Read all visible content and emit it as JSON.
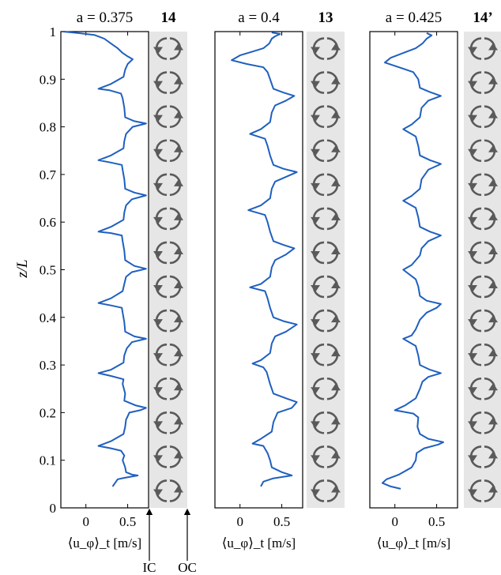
{
  "chart_data": [
    {
      "type": "line",
      "title": "a = 0.375",
      "roll_count": "14",
      "xlabel": "⟨u_φ⟩_t [m/s]",
      "ylabel": "z/L",
      "xlim": [
        -0.3,
        0.75
      ],
      "ylim": [
        0,
        1
      ],
      "xticks": [
        0,
        0.5
      ],
      "yticks": [
        0,
        0.1,
        0.2,
        0.3,
        0.4,
        0.5,
        0.6,
        0.7,
        0.8,
        0.9,
        1
      ],
      "line_color": "#1f5fbf",
      "series": [
        {
          "points": [
            [
              0.32,
              0.045
            ],
            [
              0.36,
              0.055
            ],
            [
              0.38,
              0.06
            ],
            [
              0.46,
              0.063
            ],
            [
              0.62,
              0.068
            ],
            [
              0.55,
              0.07
            ],
            [
              0.48,
              0.075
            ],
            [
              0.47,
              0.085
            ],
            [
              0.44,
              0.1
            ],
            [
              0.46,
              0.11
            ],
            [
              0.42,
              0.12
            ],
            [
              0.3,
              0.125
            ],
            [
              0.15,
              0.13
            ],
            [
              0.3,
              0.14
            ],
            [
              0.45,
              0.155
            ],
            [
              0.47,
              0.17
            ],
            [
              0.48,
              0.185
            ],
            [
              0.52,
              0.2
            ],
            [
              0.65,
              0.205
            ],
            [
              0.72,
              0.21
            ],
            [
              0.6,
              0.215
            ],
            [
              0.46,
              0.225
            ],
            [
              0.47,
              0.24
            ],
            [
              0.44,
              0.26
            ],
            [
              0.45,
              0.27
            ],
            [
              0.3,
              0.277
            ],
            [
              0.15,
              0.283
            ],
            [
              0.3,
              0.29
            ],
            [
              0.45,
              0.305
            ],
            [
              0.46,
              0.32
            ],
            [
              0.49,
              0.335
            ],
            [
              0.55,
              0.348
            ],
            [
              0.72,
              0.355
            ],
            [
              0.58,
              0.36
            ],
            [
              0.47,
              0.37
            ],
            [
              0.46,
              0.39
            ],
            [
              0.44,
              0.41
            ],
            [
              0.43,
              0.42
            ],
            [
              0.3,
              0.425
            ],
            [
              0.15,
              0.43
            ],
            [
              0.3,
              0.44
            ],
            [
              0.44,
              0.455
            ],
            [
              0.46,
              0.47
            ],
            [
              0.48,
              0.485
            ],
            [
              0.55,
              0.495
            ],
            [
              0.72,
              0.502
            ],
            [
              0.58,
              0.508
            ],
            [
              0.47,
              0.52
            ],
            [
              0.46,
              0.54
            ],
            [
              0.44,
              0.56
            ],
            [
              0.43,
              0.572
            ],
            [
              0.3,
              0.577
            ],
            [
              0.15,
              0.58
            ],
            [
              0.3,
              0.59
            ],
            [
              0.45,
              0.605
            ],
            [
              0.46,
              0.62
            ],
            [
              0.48,
              0.635
            ],
            [
              0.55,
              0.648
            ],
            [
              0.72,
              0.656
            ],
            [
              0.58,
              0.662
            ],
            [
              0.47,
              0.67
            ],
            [
              0.46,
              0.69
            ],
            [
              0.44,
              0.71
            ],
            [
              0.43,
              0.72
            ],
            [
              0.3,
              0.725
            ],
            [
              0.15,
              0.73
            ],
            [
              0.3,
              0.74
            ],
            [
              0.45,
              0.755
            ],
            [
              0.46,
              0.77
            ],
            [
              0.48,
              0.785
            ],
            [
              0.56,
              0.8
            ],
            [
              0.72,
              0.807
            ],
            [
              0.58,
              0.812
            ],
            [
              0.47,
              0.82
            ],
            [
              0.46,
              0.84
            ],
            [
              0.44,
              0.86
            ],
            [
              0.42,
              0.87
            ],
            [
              0.28,
              0.877
            ],
            [
              0.15,
              0.88
            ],
            [
              0.3,
              0.89
            ],
            [
              0.45,
              0.905
            ],
            [
              0.47,
              0.92
            ],
            [
              0.5,
              0.932
            ],
            [
              0.56,
              0.942
            ],
            [
              0.5,
              0.948
            ],
            [
              0.44,
              0.955
            ],
            [
              0.38,
              0.965
            ],
            [
              0.3,
              0.975
            ],
            [
              0.22,
              0.985
            ],
            [
              0.1,
              0.993
            ],
            [
              -0.1,
              0.997
            ],
            [
              -0.27,
              1.0
            ]
          ]
        }
      ]
    },
    {
      "type": "line",
      "title": "a = 0.4",
      "roll_count": "13",
      "xlabel": "⟨u_φ⟩_t [m/s]",
      "ylabel": "",
      "xlim": [
        -0.3,
        0.75
      ],
      "ylim": [
        0,
        1
      ],
      "xticks": [
        0,
        0.5
      ],
      "line_color": "#1f5fbf",
      "series": [
        {
          "points": [
            [
              0.25,
              0.045
            ],
            [
              0.28,
              0.055
            ],
            [
              0.4,
              0.062
            ],
            [
              0.62,
              0.068
            ],
            [
              0.5,
              0.075
            ],
            [
              0.38,
              0.085
            ],
            [
              0.36,
              0.1
            ],
            [
              0.33,
              0.115
            ],
            [
              0.28,
              0.13
            ],
            [
              0.15,
              0.135
            ],
            [
              0.25,
              0.145
            ],
            [
              0.38,
              0.16
            ],
            [
              0.4,
              0.18
            ],
            [
              0.45,
              0.2
            ],
            [
              0.62,
              0.21
            ],
            [
              0.68,
              0.222
            ],
            [
              0.55,
              0.23
            ],
            [
              0.4,
              0.24
            ],
            [
              0.36,
              0.26
            ],
            [
              0.32,
              0.285
            ],
            [
              0.28,
              0.295
            ],
            [
              0.15,
              0.303
            ],
            [
              0.25,
              0.31
            ],
            [
              0.36,
              0.325
            ],
            [
              0.38,
              0.345
            ],
            [
              0.42,
              0.36
            ],
            [
              0.55,
              0.37
            ],
            [
              0.68,
              0.385
            ],
            [
              0.52,
              0.392
            ],
            [
              0.4,
              0.4
            ],
            [
              0.36,
              0.42
            ],
            [
              0.33,
              0.44
            ],
            [
              0.3,
              0.455
            ],
            [
              0.12,
              0.463
            ],
            [
              0.25,
              0.47
            ],
            [
              0.36,
              0.485
            ],
            [
              0.38,
              0.505
            ],
            [
              0.42,
              0.52
            ],
            [
              0.55,
              0.532
            ],
            [
              0.65,
              0.545
            ],
            [
              0.52,
              0.552
            ],
            [
              0.4,
              0.56
            ],
            [
              0.36,
              0.58
            ],
            [
              0.33,
              0.6
            ],
            [
              0.3,
              0.615
            ],
            [
              0.1,
              0.625
            ],
            [
              0.25,
              0.635
            ],
            [
              0.36,
              0.65
            ],
            [
              0.38,
              0.67
            ],
            [
              0.42,
              0.685
            ],
            [
              0.55,
              0.695
            ],
            [
              0.68,
              0.705
            ],
            [
              0.52,
              0.712
            ],
            [
              0.4,
              0.72
            ],
            [
              0.36,
              0.74
            ],
            [
              0.33,
              0.76
            ],
            [
              0.3,
              0.775
            ],
            [
              0.12,
              0.785
            ],
            [
              0.25,
              0.795
            ],
            [
              0.36,
              0.81
            ],
            [
              0.38,
              0.83
            ],
            [
              0.42,
              0.845
            ],
            [
              0.55,
              0.855
            ],
            [
              0.65,
              0.865
            ],
            [
              0.52,
              0.872
            ],
            [
              0.4,
              0.88
            ],
            [
              0.36,
              0.9
            ],
            [
              0.33,
              0.915
            ],
            [
              0.28,
              0.925
            ],
            [
              0.08,
              0.932
            ],
            [
              -0.1,
              0.94
            ],
            [
              0.0,
              0.95
            ],
            [
              0.15,
              0.958
            ],
            [
              0.28,
              0.965
            ],
            [
              0.35,
              0.975
            ],
            [
              0.38,
              0.985
            ],
            [
              0.42,
              0.99
            ],
            [
              0.48,
              0.995
            ],
            [
              0.38,
              0.998
            ]
          ]
        }
      ]
    },
    {
      "type": "line",
      "title": "a = 0.425",
      "roll_count": "14’",
      "xlabel": "⟨u_φ⟩_t [m/s]",
      "ylabel": "",
      "xlim": [
        -0.3,
        0.75
      ],
      "ylim": [
        0,
        1
      ],
      "xticks": [
        0,
        0.5
      ],
      "line_color": "#1f5fbf",
      "series": [
        {
          "points": [
            [
              0.07,
              0.04
            ],
            [
              -0.05,
              0.045
            ],
            [
              -0.15,
              0.052
            ],
            [
              -0.1,
              0.06
            ],
            [
              0.05,
              0.07
            ],
            [
              0.2,
              0.085
            ],
            [
              0.25,
              0.1
            ],
            [
              0.26,
              0.115
            ],
            [
              0.35,
              0.125
            ],
            [
              0.52,
              0.133
            ],
            [
              0.58,
              0.138
            ],
            [
              0.4,
              0.145
            ],
            [
              0.3,
              0.155
            ],
            [
              0.27,
              0.17
            ],
            [
              0.28,
              0.19
            ],
            [
              0.22,
              0.198
            ],
            [
              0.0,
              0.205
            ],
            [
              0.12,
              0.215
            ],
            [
              0.25,
              0.23
            ],
            [
              0.3,
              0.25
            ],
            [
              0.33,
              0.265
            ],
            [
              0.4,
              0.275
            ],
            [
              0.55,
              0.283
            ],
            [
              0.42,
              0.29
            ],
            [
              0.3,
              0.3
            ],
            [
              0.28,
              0.32
            ],
            [
              0.25,
              0.34
            ],
            [
              0.1,
              0.355
            ],
            [
              0.2,
              0.362
            ],
            [
              0.25,
              0.375
            ],
            [
              0.3,
              0.395
            ],
            [
              0.38,
              0.41
            ],
            [
              0.5,
              0.42
            ],
            [
              0.55,
              0.428
            ],
            [
              0.38,
              0.435
            ],
            [
              0.3,
              0.445
            ],
            [
              0.28,
              0.465
            ],
            [
              0.25,
              0.48
            ],
            [
              0.1,
              0.5
            ],
            [
              0.2,
              0.51
            ],
            [
              0.3,
              0.53
            ],
            [
              0.32,
              0.545
            ],
            [
              0.4,
              0.56
            ],
            [
              0.55,
              0.572
            ],
            [
              0.42,
              0.58
            ],
            [
              0.3,
              0.59
            ],
            [
              0.28,
              0.61
            ],
            [
              0.25,
              0.63
            ],
            [
              0.1,
              0.645
            ],
            [
              0.2,
              0.655
            ],
            [
              0.3,
              0.67
            ],
            [
              0.32,
              0.69
            ],
            [
              0.4,
              0.71
            ],
            [
              0.55,
              0.722
            ],
            [
              0.42,
              0.73
            ],
            [
              0.3,
              0.74
            ],
            [
              0.28,
              0.76
            ],
            [
              0.25,
              0.78
            ],
            [
              0.1,
              0.795
            ],
            [
              0.2,
              0.805
            ],
            [
              0.3,
              0.82
            ],
            [
              0.32,
              0.84
            ],
            [
              0.4,
              0.855
            ],
            [
              0.55,
              0.865
            ],
            [
              0.42,
              0.873
            ],
            [
              0.3,
              0.882
            ],
            [
              0.28,
              0.9
            ],
            [
              0.22,
              0.915
            ],
            [
              0.05,
              0.925
            ],
            [
              -0.12,
              0.935
            ],
            [
              -0.05,
              0.945
            ],
            [
              0.1,
              0.955
            ],
            [
              0.25,
              0.965
            ],
            [
              0.33,
              0.975
            ],
            [
              0.38,
              0.985
            ],
            [
              0.44,
              0.992
            ],
            [
              0.38,
              0.997
            ]
          ]
        }
      ]
    }
  ],
  "rolls": {
    "icons_per_strip": 14,
    "strip_color": "#e6e6e6",
    "arrow_color": "#5a5a5a",
    "icon_name": "circular-arrows-icon"
  },
  "cylinder_markers": {
    "inner": "IC",
    "outer": "OC"
  }
}
